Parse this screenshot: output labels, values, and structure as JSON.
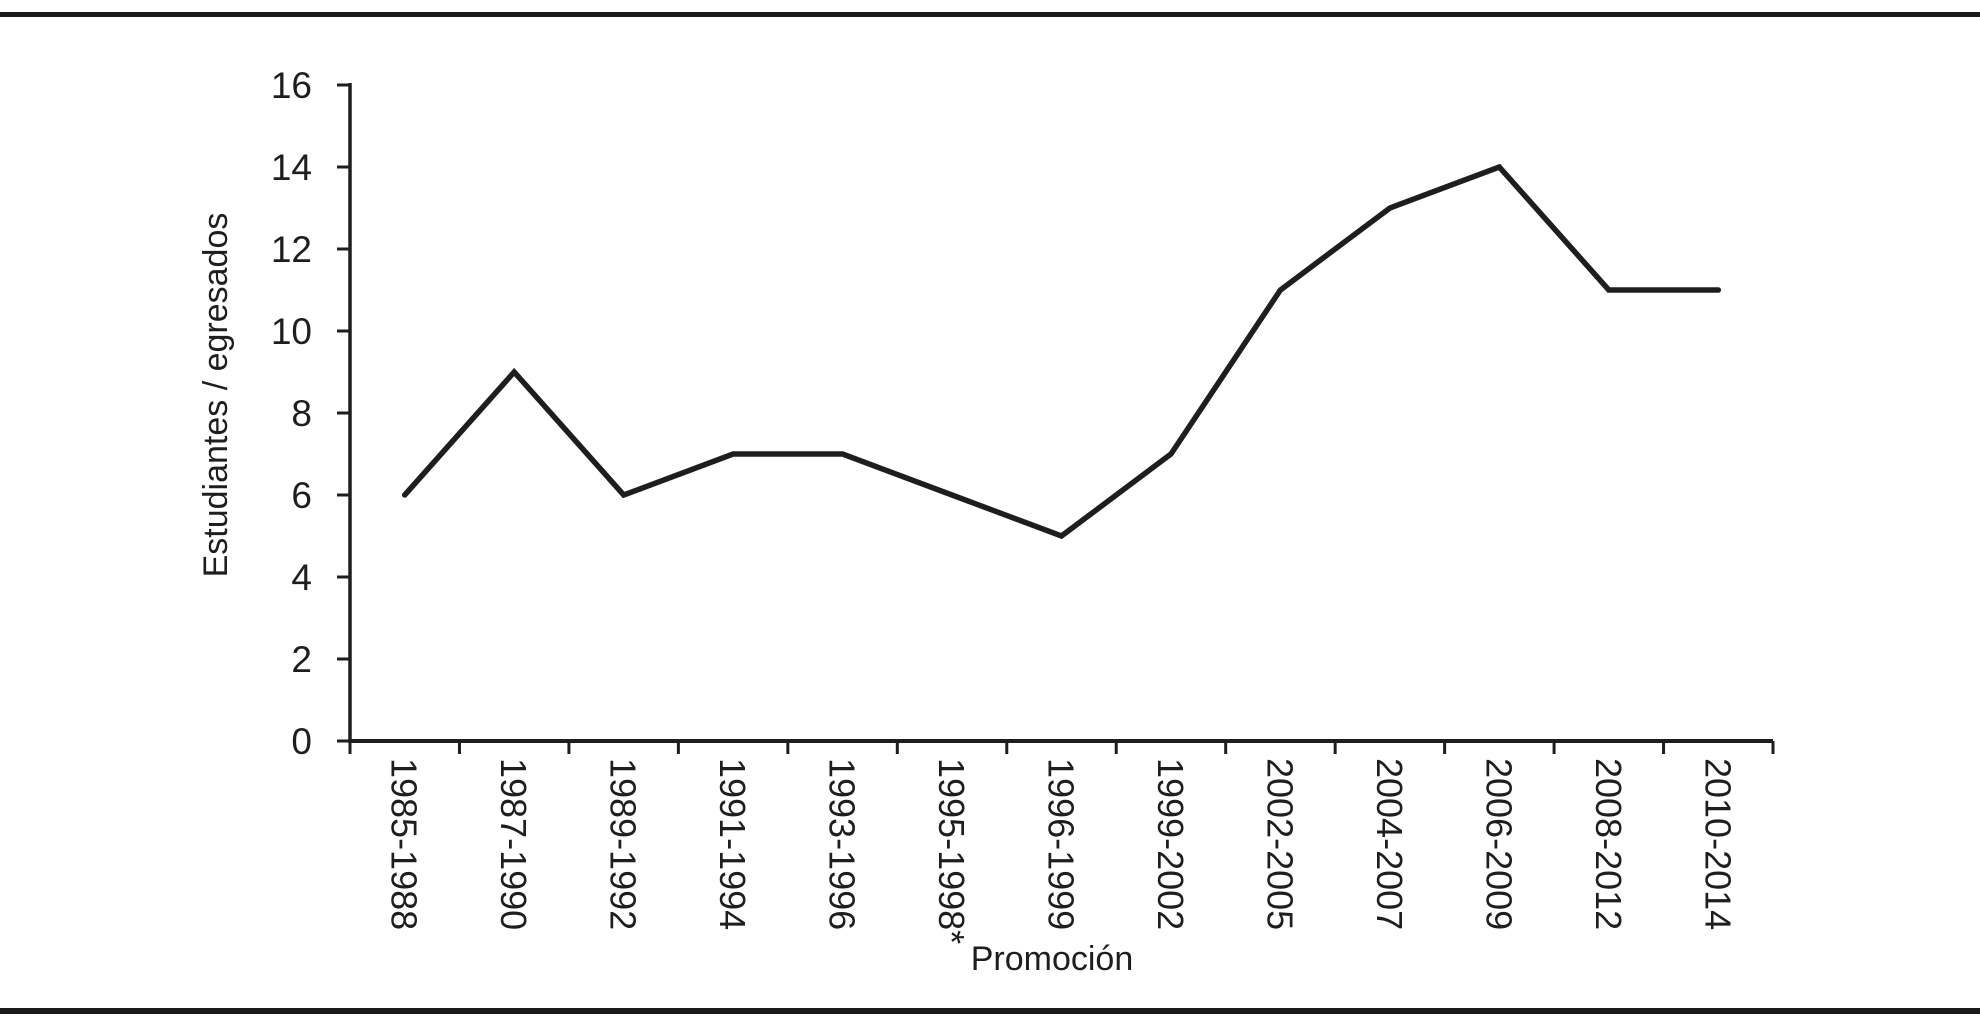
{
  "figure": {
    "background": "#ffffff",
    "ink_color": "#1e1e1e"
  },
  "chart_data": {
    "type": "line",
    "title": "",
    "categories": [
      "1985-1988",
      "1987-1990",
      "1989-1992",
      "1991-1994",
      "1993-1996",
      "1995-1998*",
      "1996-1999",
      "1999-2002",
      "2002-2005",
      "2004-2007",
      "2006-2009",
      "2008-2012",
      "2010-2014"
    ],
    "values": [
      6,
      9,
      6,
      7,
      7,
      6,
      5,
      7,
      11,
      13,
      14,
      11,
      11
    ],
    "xlabel": "Promoción",
    "ylabel": "Estudiantes / egresados",
    "ylim": [
      0,
      16
    ],
    "yticks": [
      0,
      2,
      4,
      6,
      8,
      10,
      12,
      14,
      16
    ],
    "grid": false,
    "legend": "none",
    "line_color": "#1e1e1e"
  }
}
